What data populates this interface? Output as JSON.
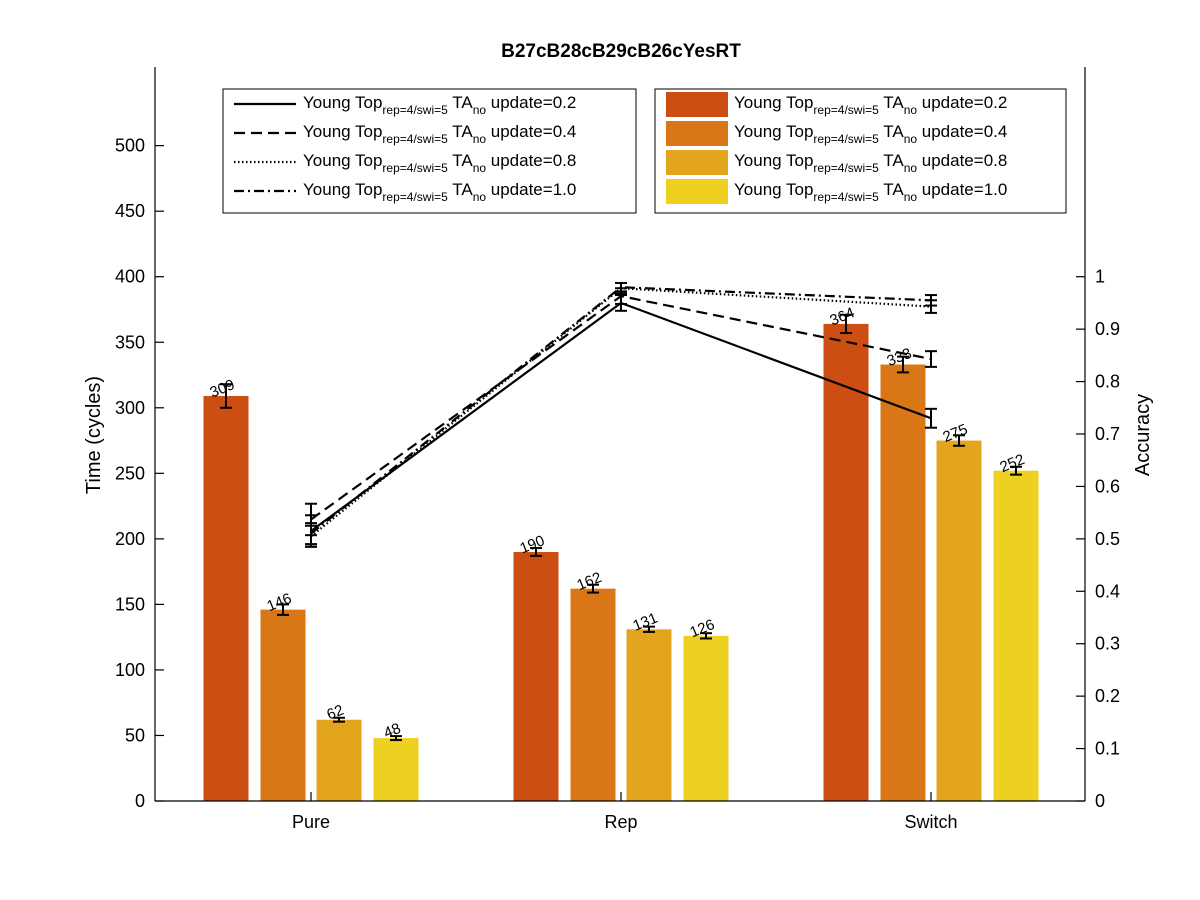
{
  "chart_data": {
    "type": "bar",
    "title": "B27cB28cB29cB26cYesRT",
    "categories": [
      "Pure",
      "Rep",
      "Switch"
    ],
    "ylabel_left": "Time (cycles)",
    "ylabel_right": "Accuracy",
    "ylim_left": [
      0,
      560
    ],
    "yticks_left": [
      0,
      50,
      100,
      150,
      200,
      250,
      300,
      350,
      400,
      450,
      500
    ],
    "ylim_right": [
      0,
      1.4
    ],
    "yticks_right": [
      0,
      0.1,
      0.2,
      0.3,
      0.4,
      0.5,
      0.6,
      0.7,
      0.8,
      0.9,
      1
    ],
    "grid": false,
    "bar_series": [
      {
        "name": "update=0.2",
        "color": "#cc4e12",
        "values": [
          309,
          190,
          364
        ],
        "labels": [
          "309",
          "190",
          "364"
        ],
        "errors": [
          9,
          3,
          7
        ]
      },
      {
        "name": "update=0.4",
        "color": "#d97716",
        "values": [
          146,
          162,
          333
        ],
        "labels": [
          "146",
          "162",
          "333"
        ],
        "errors": [
          4,
          3,
          6
        ]
      },
      {
        "name": "update=0.8",
        "color": "#e3a41e",
        "values": [
          62,
          131,
          275
        ],
        "labels": [
          "62",
          "131",
          "275"
        ],
        "errors": [
          1.5,
          2,
          4
        ]
      },
      {
        "name": "update=1.0",
        "color": "#edd020",
        "values": [
          48,
          126,
          252
        ],
        "labels": [
          "48",
          "126",
          "252"
        ],
        "errors": [
          1.5,
          2,
          3
        ]
      }
    ],
    "line_series": [
      {
        "name": "update=0.2",
        "style": "solid",
        "values": [
          0.515,
          0.95,
          0.73
        ],
        "errors": [
          0.03,
          0.015,
          0.018
        ]
      },
      {
        "name": "update=0.4",
        "style": "dashed",
        "values": [
          0.537,
          0.963,
          0.843
        ],
        "errors": [
          0.03,
          0.015,
          0.015
        ]
      },
      {
        "name": "update=0.8",
        "style": "dotted",
        "values": [
          0.505,
          0.978,
          0.943
        ],
        "errors": [
          0.02,
          0.01,
          0.012
        ]
      },
      {
        "name": "update=1.0",
        "style": "dashdot",
        "values": [
          0.51,
          0.98,
          0.955
        ],
        "errors": [
          0.02,
          0.008,
          0.01
        ]
      }
    ],
    "legend_lines": {
      "placement": "top-left",
      "entries": [
        {
          "main": "Young Top",
          "sub": "rep=4/swi=5",
          "ta": " TA",
          "ta_sub": "no",
          "tail": " update=0.2"
        },
        {
          "main": "Young Top",
          "sub": "rep=4/swi=5",
          "ta": " TA",
          "ta_sub": "no",
          "tail": " update=0.4"
        },
        {
          "main": "Young Top",
          "sub": "rep=4/swi=5",
          "ta": " TA",
          "ta_sub": "no",
          "tail": " update=0.8"
        },
        {
          "main": "Young Top",
          "sub": "rep=4/swi=5",
          "ta": " TA",
          "ta_sub": "no",
          "tail": " update=1.0"
        }
      ]
    },
    "legend_bars": {
      "placement": "top-right",
      "entries": [
        {
          "main": "Young Top",
          "sub": "rep=4/swi=5",
          "ta": " TA",
          "ta_sub": "no",
          "tail": " update=0.2"
        },
        {
          "main": "Young Top",
          "sub": "rep=4/swi=5",
          "ta": " TA",
          "ta_sub": "no",
          "tail": " update=0.4"
        },
        {
          "main": "Young Top",
          "sub": "rep=4/swi=5",
          "ta": " TA",
          "ta_sub": "no",
          "tail": " update=0.8"
        },
        {
          "main": "Young Top",
          "sub": "rep=4/swi=5",
          "ta": " TA",
          "ta_sub": "no",
          "tail": " update=1.0"
        }
      ]
    }
  }
}
